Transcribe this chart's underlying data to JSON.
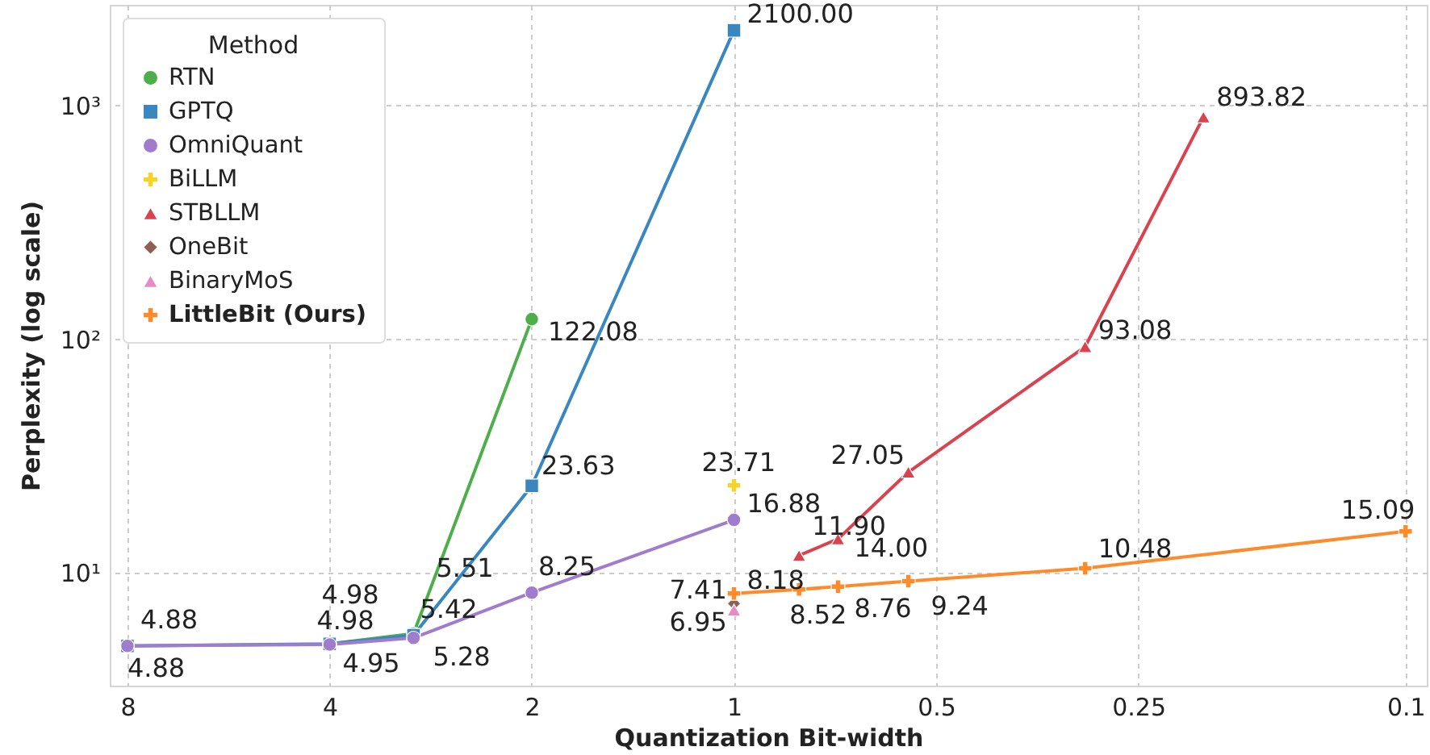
{
  "chart_data": {
    "type": "line",
    "xlabel": "Quantization Bit-width",
    "ylabel": "Perplexity (log scale)",
    "legend_title": "Method",
    "legend": "top left",
    "grid": true,
    "log": "xy",
    "line_style": "solid",
    "xlim": [
      8.5,
      0.093
    ],
    "xticks": [
      8,
      4,
      2,
      1,
      0.5,
      0.25,
      0.1
    ],
    "ylim": [
      3.3,
      2700
    ],
    "yticks": [
      {
        "value": 10,
        "label": "10¹"
      },
      {
        "value": 100,
        "label": "10²"
      },
      {
        "value": 1000,
        "label": "10³"
      }
    ],
    "series": [
      {
        "name": "RTN",
        "color": "#4daf4a",
        "marker": "circle",
        "x": [
          4,
          3,
          2
        ],
        "values": [
          4.98,
          5.51,
          122.08
        ],
        "value_labels": [
          "4.98",
          "5.51",
          "122.08"
        ]
      },
      {
        "name": "GPTQ",
        "color": "#3a87c0",
        "marker": "square",
        "x": [
          8,
          4,
          3,
          2,
          1
        ],
        "values": [
          4.88,
          4.98,
          5.42,
          23.63,
          2100.0
        ],
        "value_labels": [
          "4.88",
          "4.98",
          "5.42",
          "23.63",
          "2100.00"
        ]
      },
      {
        "name": "OmniQuant",
        "color": "#a07ccc",
        "marker": "circle",
        "x": [
          8,
          4,
          3,
          2,
          1
        ],
        "values": [
          4.88,
          4.95,
          5.28,
          8.25,
          16.88
        ],
        "value_labels": [
          "4.88",
          "4.95",
          "5.28",
          "8.25",
          "16.88"
        ]
      },
      {
        "name": "BiLLM",
        "color": "#f5d327",
        "marker": "cross",
        "x": [
          1
        ],
        "values": [
          23.71
        ],
        "value_labels": [
          "23.71"
        ]
      },
      {
        "name": "STBLLM",
        "color": "#d9434f",
        "marker": "triangle",
        "x": [
          0.8,
          0.7,
          0.55,
          0.3,
          0.2
        ],
        "values": [
          11.9,
          14.0,
          27.05,
          93.08,
          893.82
        ],
        "value_labels": [
          "11.90",
          "14.00",
          "27.05",
          "93.08",
          "893.82"
        ]
      },
      {
        "name": "OneBit",
        "color": "#8f5f52",
        "marker": "diamond",
        "x": [
          1
        ],
        "values": [
          7.41
        ],
        "value_labels": [
          "7.41"
        ]
      },
      {
        "name": "BinaryMoS",
        "color": "#e989c8",
        "marker": "triangle",
        "x": [
          1
        ],
        "values": [
          6.95
        ],
        "value_labels": [
          "6.95"
        ]
      },
      {
        "name": "LittleBit (Ours)",
        "color": "#ff8a2a",
        "marker": "cross",
        "x": [
          1,
          0.8,
          0.7,
          0.55,
          0.3,
          0.1
        ],
        "values": [
          8.18,
          8.52,
          8.76,
          9.24,
          10.48,
          15.09
        ],
        "value_labels": [
          "8.18",
          "8.52",
          "8.76",
          "9.24",
          "10.48",
          "15.09"
        ]
      }
    ]
  }
}
